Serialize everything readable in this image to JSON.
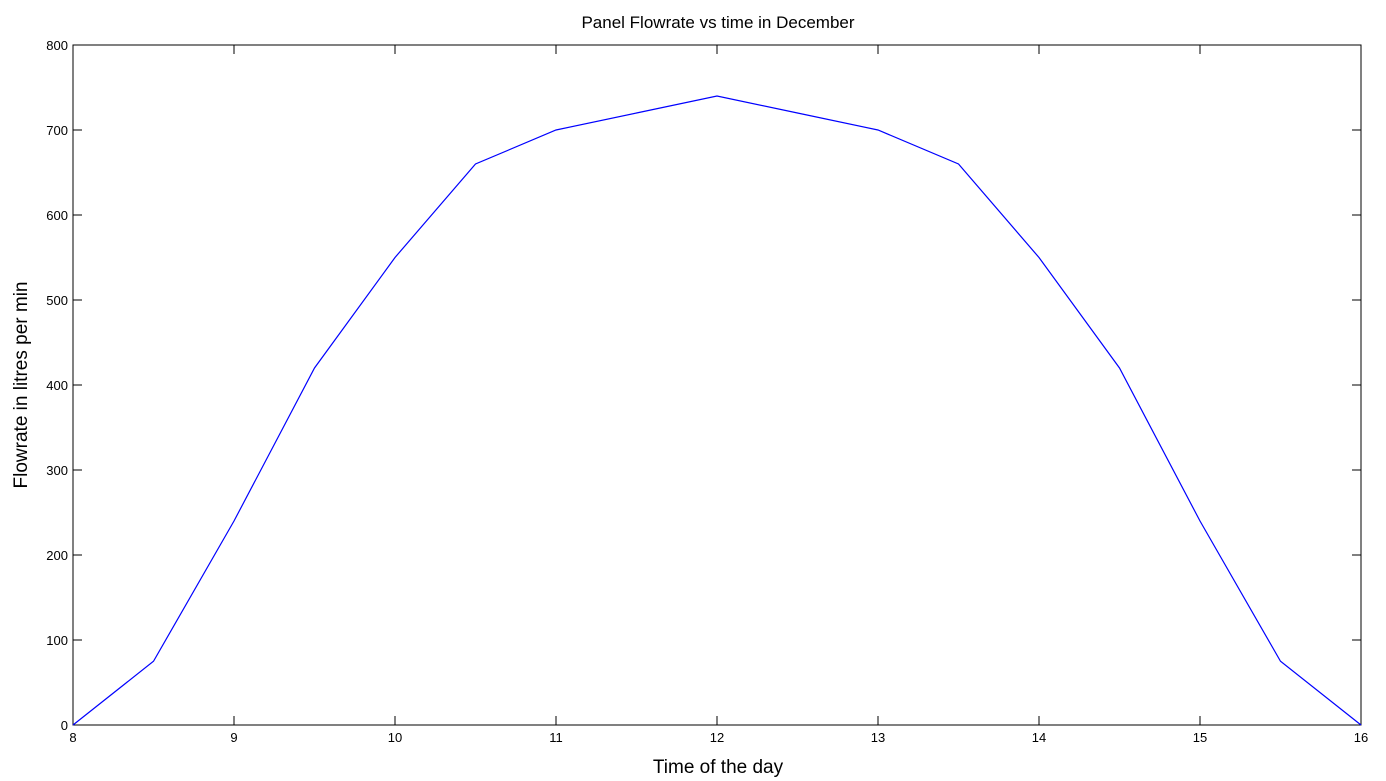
{
  "chart_data": {
    "type": "line",
    "title": "Panel Flowrate vs time in December",
    "xlabel": "Time of the day",
    "ylabel": "Flowrate in litres per min",
    "xlim": [
      8,
      16
    ],
    "ylim": [
      0,
      800
    ],
    "x_ticks": [
      "8",
      "9",
      "10",
      "11",
      "12",
      "13",
      "14",
      "15",
      "16"
    ],
    "y_ticks": [
      "0",
      "100",
      "200",
      "300",
      "400",
      "500",
      "600",
      "700",
      "800"
    ],
    "grid": false,
    "series": [
      {
        "color": "#0000ff",
        "x": [
          8,
          8.5,
          9,
          9.5,
          10,
          10.5,
          11,
          11.5,
          12,
          12.5,
          13,
          13.5,
          14,
          14.5,
          15,
          15.5,
          16
        ],
        "y": [
          0,
          75,
          240,
          420,
          550,
          660,
          700,
          720,
          740,
          720,
          700,
          660,
          550,
          420,
          240,
          75,
          0
        ]
      }
    ]
  }
}
